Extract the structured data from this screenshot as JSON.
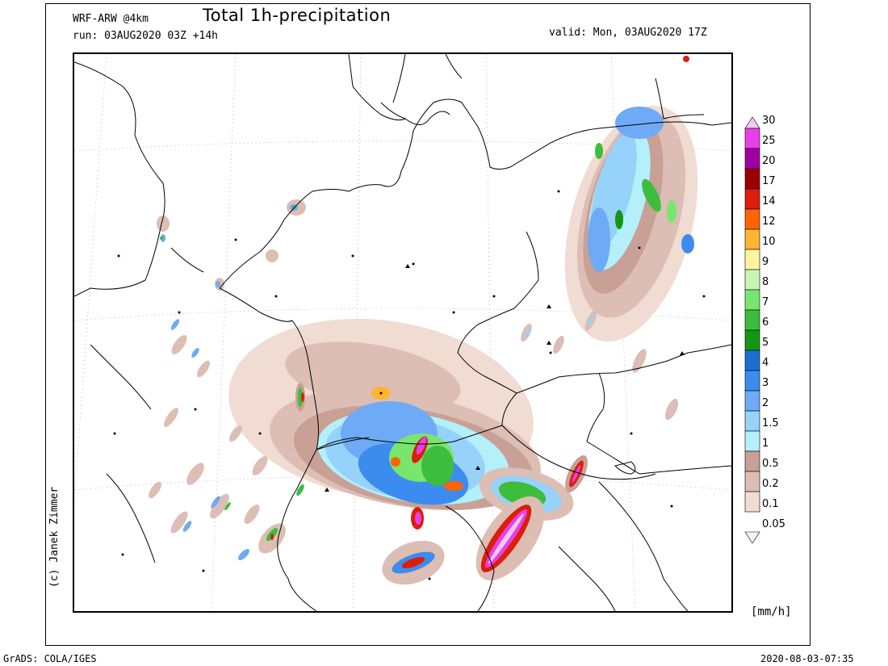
{
  "header": {
    "model": "WRF-ARW @4km",
    "run": "run: 03AUG2020 03Z +14h",
    "title": "Total 1h-precipitation",
    "valid": "valid: Mon, 03AUG2020 17Z"
  },
  "credit": "(c) Janek Zimmer",
  "legend": {
    "unit": "[mm/h]",
    "levels": [
      {
        "label": "30",
        "color": "#f5c8f5"
      },
      {
        "label": "25",
        "color": "#e641e6"
      },
      {
        "label": "20",
        "color": "#a000a0"
      },
      {
        "label": "17",
        "color": "#9b0000"
      },
      {
        "label": "14",
        "color": "#dc1e0a"
      },
      {
        "label": "12",
        "color": "#ff6400"
      },
      {
        "label": "10",
        "color": "#ffb432"
      },
      {
        "label": "9",
        "color": "#fff5a0"
      },
      {
        "label": "8",
        "color": "#c8f5b4"
      },
      {
        "label": "7",
        "color": "#78e66e"
      },
      {
        "label": "6",
        "color": "#3cbe3c"
      },
      {
        "label": "5",
        "color": "#149614"
      },
      {
        "label": "4",
        "color": "#1e6ed2"
      },
      {
        "label": "3",
        "color": "#3c8cf0"
      },
      {
        "label": "2",
        "color": "#6eaaf5"
      },
      {
        "label": "1.5",
        "color": "#96d2fa"
      },
      {
        "label": "1",
        "color": "#b4f0fa"
      },
      {
        "label": "0.5",
        "color": "#c8a096"
      },
      {
        "label": "0.2",
        "color": "#dcbeb4"
      },
      {
        "label": "0.1",
        "color": "#f0dcd2"
      },
      {
        "label": "0.05",
        "color": "#fcf0e8"
      }
    ]
  },
  "footer": {
    "software": "GrADS: COLA/IGES",
    "timestamp": "2020-08-03-07:35"
  }
}
